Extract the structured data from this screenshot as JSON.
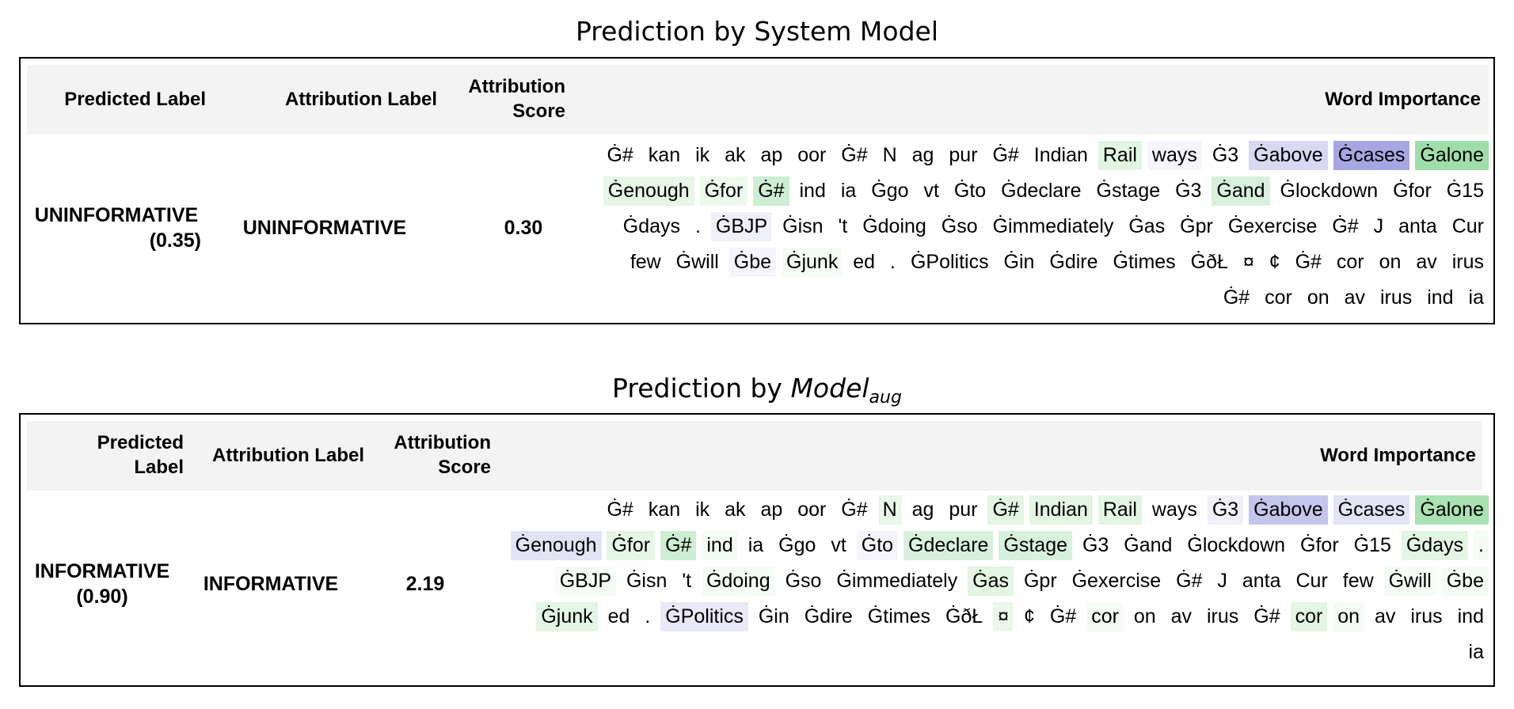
{
  "panels": [
    {
      "title": "Prediction by System Model",
      "columns": {
        "predicted_label": "Predicted Label",
        "attribution_label": "Attribution Label",
        "attribution_score_l1": "Attribution",
        "attribution_score_l2": "Score",
        "word_importance": "Word Importance"
      },
      "row": {
        "predicted_label": "UNINFORMATIVE",
        "predicted_prob": "(0.35)",
        "attribution_label": "UNINFORMATIVE",
        "attribution_score": "0.30"
      },
      "tokens": [
        {
          "t": "Ġ#",
          "c": "#ffffff"
        },
        {
          "t": "kan",
          "c": "#ffffff"
        },
        {
          "t": "ik",
          "c": "#ffffff"
        },
        {
          "t": "ak",
          "c": "#ffffff"
        },
        {
          "t": "ap",
          "c": "#ffffff"
        },
        {
          "t": "oor",
          "c": "#ffffff"
        },
        {
          "t": "Ġ#",
          "c": "#ffffff"
        },
        {
          "t": "N",
          "c": "#ffffff"
        },
        {
          "t": "ag",
          "c": "#ffffff"
        },
        {
          "t": "pur",
          "c": "#ffffff"
        },
        {
          "t": "Ġ#",
          "c": "#ffffff"
        },
        {
          "t": "Indian",
          "c": "#ffffff"
        },
        {
          "t": "Rail",
          "c": "#e2f4e2"
        },
        {
          "t": "ways",
          "c": "#f5f5fb"
        },
        {
          "t": "Ġ3",
          "c": "#ffffff"
        },
        {
          "t": "Ġabove",
          "c": "#d8d8f3"
        },
        {
          "t": "Ġcases",
          "c": "#a6a6e2"
        },
        {
          "t": "Ġalone",
          "c": "#9fdea9"
        },
        {
          "t": "Ġenough",
          "c": "#e7f6e7"
        },
        {
          "t": "Ġfor",
          "c": "#eef9ee"
        },
        {
          "t": "Ġ#",
          "c": "#cdeed3"
        },
        {
          "t": "ind",
          "c": "#ffffff"
        },
        {
          "t": "ia",
          "c": "#ffffff"
        },
        {
          "t": "Ġgo",
          "c": "#ffffff"
        },
        {
          "t": "vt",
          "c": "#ffffff"
        },
        {
          "t": "Ġto",
          "c": "#ffffff"
        },
        {
          "t": "Ġdeclare",
          "c": "#ffffff"
        },
        {
          "t": "Ġstage",
          "c": "#ffffff"
        },
        {
          "t": "Ġ3",
          "c": "#ffffff"
        },
        {
          "t": "Ġand",
          "c": "#d8f1dc"
        },
        {
          "t": "Ġlockdown",
          "c": "#ffffff"
        },
        {
          "t": "Ġfor",
          "c": "#ffffff"
        },
        {
          "t": "Ġ15",
          "c": "#ffffff"
        },
        {
          "t": "Ġdays",
          "c": "#ffffff"
        },
        {
          "t": ".",
          "c": "#ffffff"
        },
        {
          "t": "ĠBJP",
          "c": "#f0f0fa"
        },
        {
          "t": "Ġisn",
          "c": "#ffffff"
        },
        {
          "t": "'t",
          "c": "#ffffff"
        },
        {
          "t": "Ġdoing",
          "c": "#ffffff"
        },
        {
          "t": "Ġso",
          "c": "#ffffff"
        },
        {
          "t": "Ġimmediately",
          "c": "#ffffff"
        },
        {
          "t": "Ġas",
          "c": "#ffffff"
        },
        {
          "t": "Ġpr",
          "c": "#ffffff"
        },
        {
          "t": "Ġexercise",
          "c": "#ffffff"
        },
        {
          "t": "Ġ#",
          "c": "#ffffff"
        },
        {
          "t": "J",
          "c": "#ffffff"
        },
        {
          "t": "anta",
          "c": "#ffffff"
        },
        {
          "t": "Cur",
          "c": "#ffffff"
        },
        {
          "t": "few",
          "c": "#ffffff"
        },
        {
          "t": "Ġwill",
          "c": "#ffffff"
        },
        {
          "t": "Ġbe",
          "c": "#f5f5fb"
        },
        {
          "t": "Ġjunk",
          "c": "#f5fbf5"
        },
        {
          "t": "ed",
          "c": "#ffffff"
        },
        {
          "t": ".",
          "c": "#ffffff"
        },
        {
          "t": "ĠPolitics",
          "c": "#ffffff"
        },
        {
          "t": "Ġin",
          "c": "#ffffff"
        },
        {
          "t": "Ġdire",
          "c": "#ffffff"
        },
        {
          "t": "Ġtimes",
          "c": "#ffffff"
        },
        {
          "t": "ĠðŁ",
          "c": "#ffffff"
        },
        {
          "t": "¤",
          "c": "#ffffff"
        },
        {
          "t": "¢",
          "c": "#ffffff"
        },
        {
          "t": "Ġ#",
          "c": "#ffffff"
        },
        {
          "t": "cor",
          "c": "#ffffff"
        },
        {
          "t": "on",
          "c": "#ffffff"
        },
        {
          "t": "av",
          "c": "#ffffff"
        },
        {
          "t": "irus",
          "c": "#ffffff"
        },
        {
          "t": "Ġ#",
          "c": "#ffffff"
        },
        {
          "t": "cor",
          "c": "#ffffff"
        },
        {
          "t": "on",
          "c": "#ffffff"
        },
        {
          "t": "av",
          "c": "#ffffff"
        },
        {
          "t": "irus",
          "c": "#ffffff"
        },
        {
          "t": "ind",
          "c": "#ffffff"
        },
        {
          "t": "ia",
          "c": "#ffffff"
        }
      ]
    },
    {
      "title_prefix": "Prediction by ",
      "title_model": "Model",
      "title_sub": "aug",
      "columns": {
        "predicted_label_l1": "Predicted",
        "predicted_label_l2": "Label",
        "attribution_label": "Attribution Label",
        "attribution_score_l1": "Attribution",
        "attribution_score_l2": "Score",
        "word_importance": "Word Importance"
      },
      "row": {
        "predicted_label": "INFORMATIVE",
        "predicted_prob": "(0.90)",
        "attribution_label": "INFORMATIVE",
        "attribution_score": "2.19"
      },
      "tokens": [
        {
          "t": "Ġ#",
          "c": "#ffffff"
        },
        {
          "t": "kan",
          "c": "#ffffff"
        },
        {
          "t": "ik",
          "c": "#ffffff"
        },
        {
          "t": "ak",
          "c": "#ffffff"
        },
        {
          "t": "ap",
          "c": "#ffffff"
        },
        {
          "t": "oor",
          "c": "#ffffff"
        },
        {
          "t": "Ġ#",
          "c": "#ffffff"
        },
        {
          "t": "N",
          "c": "#eaf7ea"
        },
        {
          "t": "ag",
          "c": "#ffffff"
        },
        {
          "t": "pur",
          "c": "#ffffff"
        },
        {
          "t": "Ġ#",
          "c": "#e3f5e3"
        },
        {
          "t": "Indian",
          "c": "#e3f5e3"
        },
        {
          "t": "Rail",
          "c": "#e3f5e3"
        },
        {
          "t": "ways",
          "c": "#ffffff"
        },
        {
          "t": "Ġ3",
          "c": "#f0f0fa"
        },
        {
          "t": "Ġabove",
          "c": "#c4c4ec"
        },
        {
          "t": "Ġcases",
          "c": "#e3e3f6"
        },
        {
          "t": "Ġalone",
          "c": "#a9e2b2"
        },
        {
          "t": "Ġenough",
          "c": "#e3e3f6"
        },
        {
          "t": "Ġfor",
          "c": "#e6f6e6"
        },
        {
          "t": "Ġ#",
          "c": "#cdeed3"
        },
        {
          "t": "ind",
          "c": "#f5fbf5"
        },
        {
          "t": "ia",
          "c": "#ffffff"
        },
        {
          "t": "Ġgo",
          "c": "#ffffff"
        },
        {
          "t": "vt",
          "c": "#ffffff"
        },
        {
          "t": "Ġto",
          "c": "#f5f5fb"
        },
        {
          "t": "Ġdeclare",
          "c": "#d8f1dc"
        },
        {
          "t": "Ġstage",
          "c": "#d8f1dc"
        },
        {
          "t": "Ġ3",
          "c": "#ffffff"
        },
        {
          "t": "Ġand",
          "c": "#ffffff"
        },
        {
          "t": "Ġlockdown",
          "c": "#ffffff"
        },
        {
          "t": "Ġfor",
          "c": "#ffffff"
        },
        {
          "t": "Ġ15",
          "c": "#ffffff"
        },
        {
          "t": "Ġdays",
          "c": "#e3f5e3"
        },
        {
          "t": ".",
          "c": "#f5fbf5"
        },
        {
          "t": "ĠBJP",
          "c": "#f5fbf5"
        },
        {
          "t": "Ġisn",
          "c": "#ffffff"
        },
        {
          "t": "'t",
          "c": "#ffffff"
        },
        {
          "t": "Ġdoing",
          "c": "#f5fbf5"
        },
        {
          "t": "Ġso",
          "c": "#ffffff"
        },
        {
          "t": "Ġimmediately",
          "c": "#ffffff"
        },
        {
          "t": "Ġas",
          "c": "#e3f5e3"
        },
        {
          "t": "Ġpr",
          "c": "#ffffff"
        },
        {
          "t": "Ġexercise",
          "c": "#ffffff"
        },
        {
          "t": "Ġ#",
          "c": "#ffffff"
        },
        {
          "t": "J",
          "c": "#ffffff"
        },
        {
          "t": "anta",
          "c": "#ffffff"
        },
        {
          "t": "Cur",
          "c": "#ffffff"
        },
        {
          "t": "few",
          "c": "#ffffff"
        },
        {
          "t": "Ġwill",
          "c": "#f5fbf5"
        },
        {
          "t": "Ġbe",
          "c": "#f5fbf5"
        },
        {
          "t": "Ġjunk",
          "c": "#e3f5e3"
        },
        {
          "t": "ed",
          "c": "#ffffff"
        },
        {
          "t": ".",
          "c": "#ffffff"
        },
        {
          "t": "ĠPolitics",
          "c": "#e8e8f8"
        },
        {
          "t": "Ġin",
          "c": "#ffffff"
        },
        {
          "t": "Ġdire",
          "c": "#ffffff"
        },
        {
          "t": "Ġtimes",
          "c": "#ffffff"
        },
        {
          "t": "ĠðŁ",
          "c": "#ffffff"
        },
        {
          "t": "¤",
          "c": "#eaf7ea"
        },
        {
          "t": "¢",
          "c": "#ffffff"
        },
        {
          "t": "Ġ#",
          "c": "#ffffff"
        },
        {
          "t": "cor",
          "c": "#f5fbf5"
        },
        {
          "t": "on",
          "c": "#ffffff"
        },
        {
          "t": "av",
          "c": "#ffffff"
        },
        {
          "t": "irus",
          "c": "#ffffff"
        },
        {
          "t": "Ġ#",
          "c": "#ffffff"
        },
        {
          "t": "cor",
          "c": "#e3f5e3"
        },
        {
          "t": "on",
          "c": "#f5fbf5"
        },
        {
          "t": "av",
          "c": "#ffffff"
        },
        {
          "t": "irus",
          "c": "#ffffff"
        },
        {
          "t": "ind",
          "c": "#ffffff"
        },
        {
          "t": "ia",
          "c": "#ffffff"
        }
      ]
    }
  ]
}
